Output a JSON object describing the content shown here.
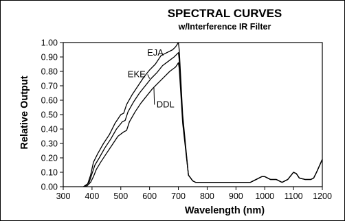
{
  "chart_data": {
    "type": "line",
    "title": "SPECTRAL CURVES",
    "subtitle": "w/Interference IR Filter",
    "xlabel": "Wavelength (nm)",
    "ylabel": "Relative Output",
    "xlim": [
      300,
      1200
    ],
    "ylim": [
      0,
      1.0
    ],
    "x_ticks": [
      300,
      400,
      500,
      600,
      700,
      800,
      900,
      1000,
      1100,
      1200
    ],
    "y_ticks": [
      0.0,
      0.1,
      0.2,
      0.3,
      0.4,
      0.5,
      0.6,
      0.7,
      0.8,
      0.9,
      1.0
    ],
    "x_tick_labels": [
      "300",
      "400",
      "500",
      "600",
      "700",
      "800",
      "900",
      "1000",
      "1100",
      "1200"
    ],
    "y_tick_labels": [
      "0.00",
      "0.10",
      "0.20",
      "0.30",
      "0.40",
      "0.50",
      "0.60",
      "0.70",
      "0.80",
      "0.90",
      "1.00"
    ],
    "grid": false,
    "series": [
      {
        "name": "EJA",
        "x": [
          370,
          385,
          395,
          405,
          420,
          440,
          460,
          480,
          500,
          510,
          520,
          540,
          560,
          580,
          600,
          620,
          640,
          660,
          680,
          690,
          700,
          703,
          715,
          735,
          750,
          760,
          800,
          900,
          950,
          970,
          990,
          1000,
          1020,
          1040,
          1060,
          1080,
          1100,
          1110,
          1120,
          1140,
          1160,
          1170,
          1180,
          1200
        ],
        "y": [
          0.0,
          0.02,
          0.08,
          0.17,
          0.23,
          0.3,
          0.36,
          0.44,
          0.5,
          0.51,
          0.57,
          0.64,
          0.7,
          0.76,
          0.81,
          0.85,
          0.91,
          0.93,
          0.95,
          0.97,
          1.0,
          0.95,
          0.5,
          0.08,
          0.04,
          0.03,
          0.03,
          0.03,
          0.03,
          0.05,
          0.07,
          0.07,
          0.05,
          0.05,
          0.03,
          0.05,
          0.1,
          0.09,
          0.06,
          0.05,
          0.05,
          0.06,
          0.1,
          0.19
        ]
      },
      {
        "name": "EKE",
        "x": [
          375,
          390,
          400,
          410,
          425,
          445,
          465,
          485,
          505,
          515,
          525,
          545,
          565,
          585,
          605,
          625,
          645,
          665,
          685,
          695,
          700,
          703,
          715,
          735,
          750,
          760,
          800,
          900,
          950,
          970,
          990,
          1000,
          1020,
          1040,
          1060,
          1080,
          1100,
          1110,
          1120,
          1140,
          1160,
          1170,
          1180,
          1200
        ],
        "y": [
          0.0,
          0.03,
          0.09,
          0.15,
          0.2,
          0.27,
          0.33,
          0.4,
          0.45,
          0.46,
          0.52,
          0.59,
          0.65,
          0.7,
          0.75,
          0.79,
          0.84,
          0.87,
          0.9,
          0.92,
          0.93,
          0.88,
          0.47,
          0.08,
          0.04,
          0.03,
          0.03,
          0.03,
          0.03,
          0.05,
          0.07,
          0.07,
          0.05,
          0.05,
          0.03,
          0.05,
          0.1,
          0.09,
          0.06,
          0.05,
          0.05,
          0.06,
          0.1,
          0.19
        ]
      },
      {
        "name": "DDL",
        "x": [
          380,
          395,
          405,
          415,
          430,
          450,
          470,
          490,
          510,
          520,
          530,
          550,
          570,
          590,
          610,
          630,
          650,
          670,
          690,
          697,
          700,
          703,
          715,
          735,
          750,
          760,
          800,
          900,
          950,
          970,
          990,
          1000,
          1020,
          1040,
          1060,
          1080,
          1100,
          1110,
          1120,
          1140,
          1160,
          1170,
          1180,
          1200
        ],
        "y": [
          0.0,
          0.03,
          0.07,
          0.12,
          0.17,
          0.23,
          0.29,
          0.35,
          0.38,
          0.39,
          0.45,
          0.52,
          0.58,
          0.63,
          0.68,
          0.72,
          0.76,
          0.8,
          0.83,
          0.85,
          0.86,
          0.82,
          0.44,
          0.08,
          0.04,
          0.03,
          0.03,
          0.03,
          0.03,
          0.05,
          0.07,
          0.07,
          0.05,
          0.05,
          0.03,
          0.05,
          0.1,
          0.09,
          0.06,
          0.05,
          0.05,
          0.06,
          0.1,
          0.19
        ]
      }
    ],
    "annotations": [
      {
        "text": "EJA",
        "series": "EJA",
        "label_at": [
          620,
          0.91
        ],
        "points_to": [
          660,
          0.93
        ]
      },
      {
        "text": "EKE",
        "series": "EKE",
        "label_at": [
          555,
          0.76
        ],
        "points_to": [
          600,
          0.75
        ]
      },
      {
        "text": "DDL",
        "series": "DDL",
        "label_at": [
          655,
          0.55
        ],
        "points_to": [
          615,
          0.69
        ]
      }
    ]
  }
}
